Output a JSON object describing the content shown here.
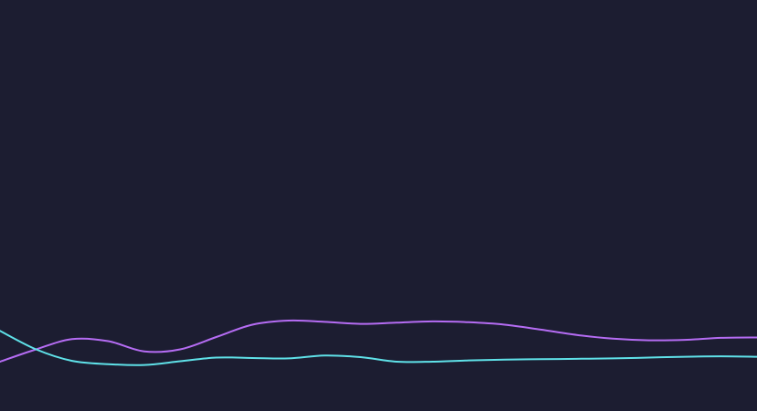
{
  "theme": {
    "background": "#1c1d31"
  },
  "chart_data": {
    "type": "line",
    "x": [
      0,
      1,
      2,
      3,
      4,
      5,
      6,
      7,
      8,
      9,
      10,
      11,
      12,
      13,
      14,
      15,
      16,
      17,
      18,
      19,
      20,
      21
    ],
    "xlim": [
      0,
      21
    ],
    "ylim": [
      0,
      100
    ],
    "grid": false,
    "legend": "none",
    "series": [
      {
        "color": "#b56cf3",
        "values": [
          12.0,
          15.0,
          17.5,
          17.0,
          14.5,
          15.0,
          18.0,
          21.0,
          22.0,
          21.7,
          21.2,
          21.5,
          21.8,
          21.6,
          21.0,
          19.8,
          18.5,
          17.6,
          17.2,
          17.3,
          17.8,
          17.9
        ]
      },
      {
        "color": "#5fe1e8",
        "values": [
          19.5,
          15.0,
          12.2,
          11.4,
          11.2,
          12.1,
          13.0,
          12.9,
          12.8,
          13.5,
          13.1,
          12.0,
          12.0,
          12.3,
          12.5,
          12.6,
          12.7,
          12.8,
          13.0,
          13.2,
          13.3,
          13.2
        ]
      }
    ]
  }
}
